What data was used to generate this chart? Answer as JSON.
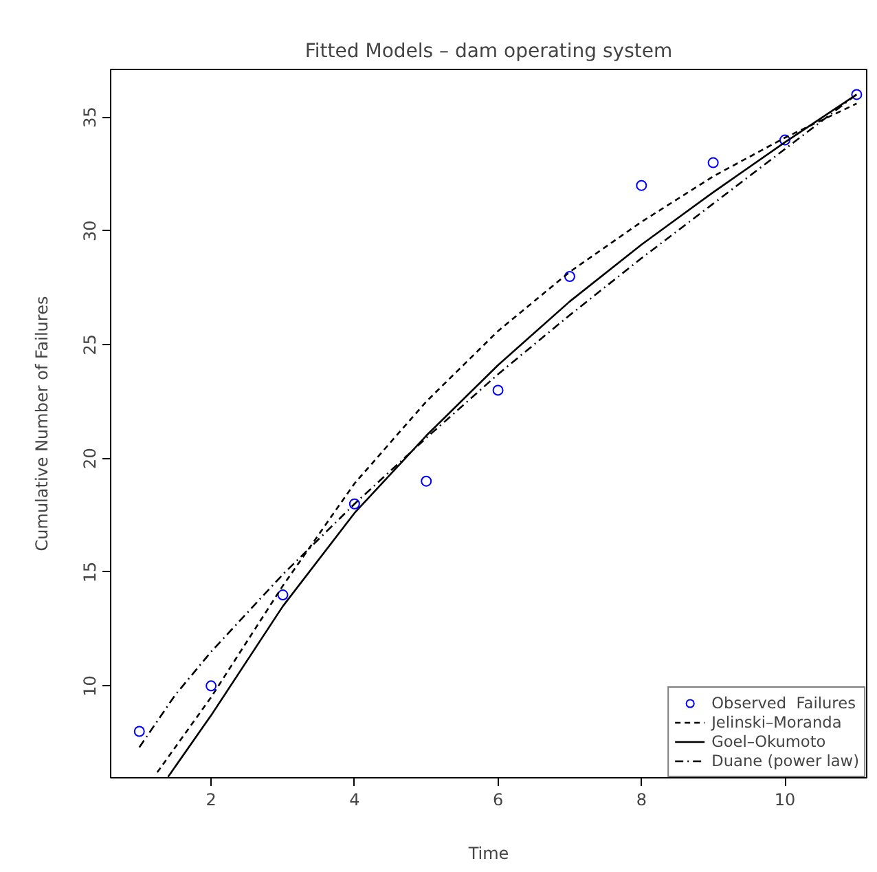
{
  "chart_data": {
    "type": "line",
    "title": "Fitted Models – dam operating system",
    "xlabel": "Time",
    "ylabel": "Cumulative Number of Failures",
    "xlim": [
      0.6,
      11.14
    ],
    "ylim": [
      5.96,
      37.1
    ],
    "xticks": [
      2,
      4,
      6,
      8,
      10
    ],
    "yticks": [
      10,
      15,
      20,
      25,
      30,
      35
    ],
    "grid": false,
    "legend": "bottom right",
    "series": [
      {
        "name": "Observed  Failures",
        "type": "scatter",
        "marker": "circle",
        "color": "#0000ff",
        "x": [
          1,
          2,
          3,
          4,
          5,
          6,
          7,
          8,
          9,
          10,
          11
        ],
        "values": [
          8,
          10,
          14,
          18,
          19,
          23,
          28,
          32,
          33,
          34,
          36
        ]
      },
      {
        "name": "Jelinski–Moranda",
        "line_style": "dashed",
        "color": "#000000",
        "x": [
          1.25,
          1.5,
          2,
          3,
          4,
          5,
          6,
          7,
          8,
          9,
          10,
          11
        ],
        "values": [
          6.2,
          7.3,
          9.5,
          14.4,
          18.9,
          22.5,
          25.6,
          28.2,
          30.4,
          32.4,
          34.1,
          35.6
        ]
      },
      {
        "name": "Goel–Okumoto",
        "line_style": "solid",
        "color": "#000000",
        "x": [
          1.4,
          2,
          3,
          4,
          5,
          6,
          7,
          8,
          9,
          10,
          11
        ],
        "values": [
          6.0,
          8.7,
          13.5,
          17.6,
          21.0,
          24.1,
          26.9,
          29.4,
          31.7,
          33.9,
          36.0
        ]
      },
      {
        "name": "Duane (power law)",
        "line_style": "dashdot",
        "color": "#000000",
        "x": [
          1,
          1.5,
          2,
          3,
          4,
          5,
          6,
          7,
          8,
          9,
          10,
          11
        ],
        "values": [
          7.3,
          9.6,
          11.5,
          14.9,
          18.0,
          20.9,
          23.7,
          26.3,
          28.8,
          31.2,
          33.6,
          36.0
        ]
      }
    ]
  }
}
